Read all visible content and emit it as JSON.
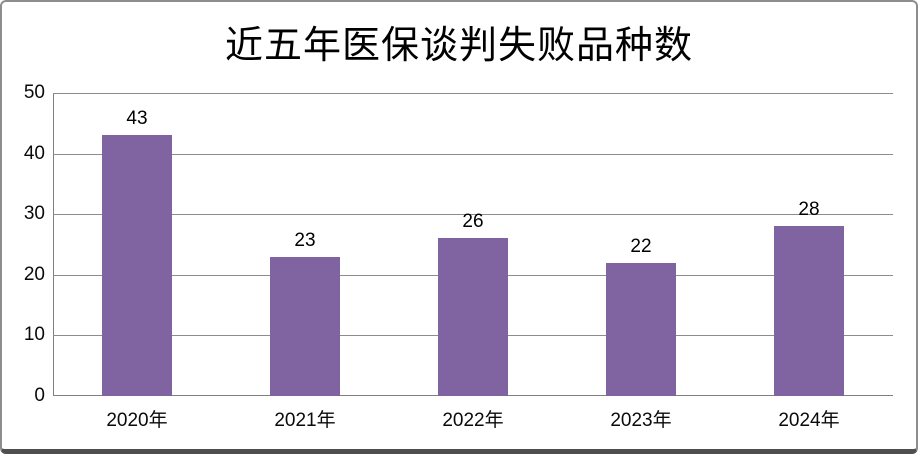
{
  "chart_data": {
    "type": "bar",
    "title": "近五年医保谈判失败品种数",
    "categories": [
      "2020年",
      "2021年",
      "2022年",
      "2023年",
      "2024年"
    ],
    "values": [
      43,
      23,
      26,
      22,
      28
    ],
    "xlabel": "",
    "ylabel": "",
    "ylim": [
      0,
      50
    ],
    "y_ticks": [
      0,
      10,
      20,
      30,
      40,
      50
    ],
    "grid": true,
    "legend_position": "none",
    "data_labels_shown": true,
    "colors": {
      "bar": "#8064A2",
      "gridline": "#8c8c8c",
      "axis": "#7f7f7f",
      "text": "#000000",
      "frame_border": "#8d8d8d",
      "frame_shadow": "#4f4f4f",
      "background": "#ffffff"
    }
  }
}
